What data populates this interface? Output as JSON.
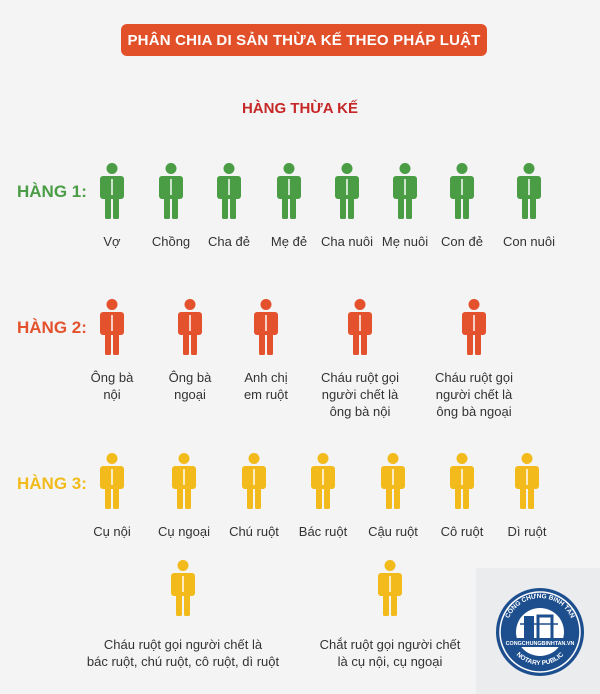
{
  "title": "PHÂN CHIA DI SẢN THỪA KẾ THEO PHÁP LUẬT",
  "subtitle": "HÀNG THỪA KẾ",
  "colors": {
    "banner": "#e2502a",
    "subtitle": "#c62828",
    "row1": "#4a9d45",
    "row2": "#e3522c",
    "row3": "#f2bb1b"
  },
  "rows": [
    {
      "label": "HÀNG 1:",
      "people": [
        {
          "label": "Vợ",
          "icon": "person-icon"
        },
        {
          "label": "Chồng",
          "icon": "person-icon"
        },
        {
          "label": "Cha đẻ",
          "icon": "person-icon"
        },
        {
          "label": "Mẹ đẻ",
          "icon": "person-icon"
        },
        {
          "label": "Cha nuôi",
          "icon": "person-icon"
        },
        {
          "label": "Mẹ nuôi",
          "icon": "person-icon"
        },
        {
          "label": "Con đẻ",
          "icon": "person-icon"
        },
        {
          "label": "Con nuôi",
          "icon": "person-icon"
        }
      ]
    },
    {
      "label": "HÀNG 2:",
      "people": [
        {
          "label": "Ông bà\nnội",
          "icon": "person-icon"
        },
        {
          "label": "Ông bà\nngoại",
          "icon": "person-icon"
        },
        {
          "label": "Anh chị\nem ruột",
          "icon": "person-icon"
        },
        {
          "label": "Cháu ruột gọi\nngười chết là\nông bà nội",
          "icon": "person-icon"
        },
        {
          "label": "Cháu ruột gọi\nngười chết là\nông bà ngoại",
          "icon": "person-icon"
        }
      ]
    },
    {
      "label": "HÀNG 3:",
      "people": [
        {
          "label": "Cụ nội",
          "icon": "person-icon"
        },
        {
          "label": "Cụ ngoại",
          "icon": "person-icon"
        },
        {
          "label": "Chú ruột",
          "icon": "person-icon"
        },
        {
          "label": "Bác ruột",
          "icon": "person-icon"
        },
        {
          "label": "Cậu ruột",
          "icon": "person-icon"
        },
        {
          "label": "Cô ruột",
          "icon": "person-icon"
        },
        {
          "label": "Dì ruột",
          "icon": "person-icon"
        },
        {
          "label": "Cháu ruột gọi người chết là\nbác ruột, chú ruột, cô ruột, dì ruột",
          "icon": "person-icon"
        },
        {
          "label": "Chắt ruột gọi người chết\nlà cụ nội, cụ ngoại",
          "icon": "person-icon"
        }
      ]
    }
  ],
  "seal": {
    "text_top": "CÔNG CHỨNG BÌNH TÂN",
    "text_mid": "CONGCHUNGBINHTAN.VN",
    "text_bottom": "NOTARY PUBLIC",
    "icon": "notary-seal-logo"
  }
}
